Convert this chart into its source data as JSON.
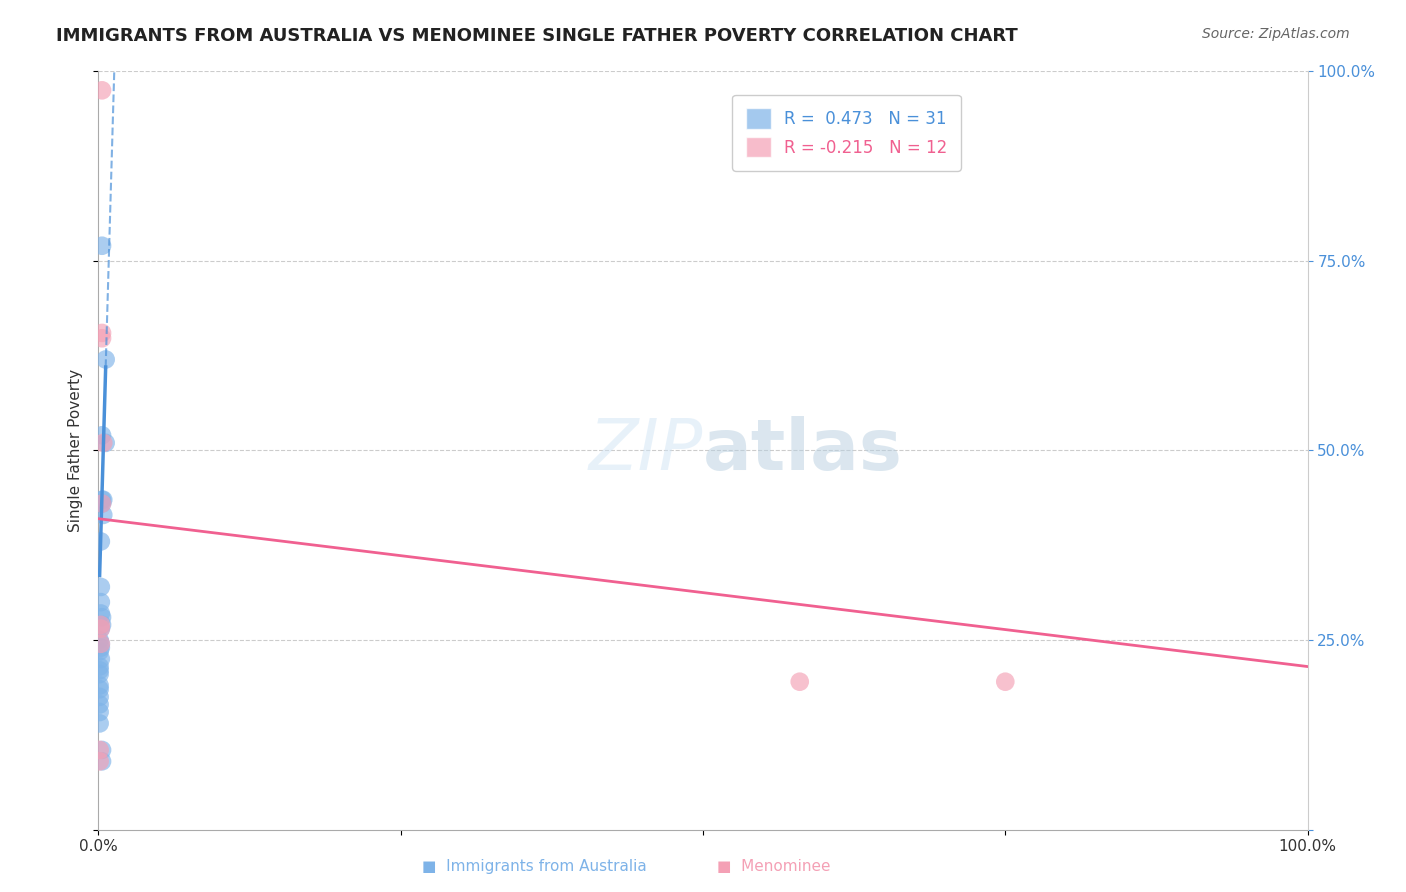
{
  "title": "IMMIGRANTS FROM AUSTRALIA VS MENOMINEE SINGLE FATHER POVERTY CORRELATION CHART",
  "source": "Source: ZipAtlas.com",
  "ylabel": "Single Father Poverty",
  "xlim": [
    0,
    1.0
  ],
  "ylim": [
    0,
    1.0
  ],
  "legend1_r": "R =  0.473",
  "legend1_n": "N = 31",
  "legend2_r": "R = -0.215",
  "legend2_n": "N = 12",
  "blue_color": "#7EB3E8",
  "pink_color": "#F4A0B5",
  "blue_line_color": "#4A90D9",
  "pink_line_color": "#F06090",
  "blue_scatter": [
    [
      0.003,
      0.77
    ],
    [
      0.006,
      0.62
    ],
    [
      0.003,
      0.52
    ],
    [
      0.006,
      0.51
    ],
    [
      0.003,
      0.435
    ],
    [
      0.003,
      0.43
    ],
    [
      0.004,
      0.435
    ],
    [
      0.004,
      0.415
    ],
    [
      0.002,
      0.38
    ],
    [
      0.002,
      0.32
    ],
    [
      0.002,
      0.3
    ],
    [
      0.002,
      0.285
    ],
    [
      0.003,
      0.28
    ],
    [
      0.003,
      0.27
    ],
    [
      0.002,
      0.265
    ],
    [
      0.001,
      0.25
    ],
    [
      0.002,
      0.245
    ],
    [
      0.002,
      0.24
    ],
    [
      0.001,
      0.235
    ],
    [
      0.002,
      0.225
    ],
    [
      0.001,
      0.215
    ],
    [
      0.001,
      0.21
    ],
    [
      0.001,
      0.205
    ],
    [
      0.001,
      0.19
    ],
    [
      0.001,
      0.185
    ],
    [
      0.001,
      0.175
    ],
    [
      0.001,
      0.165
    ],
    [
      0.001,
      0.155
    ],
    [
      0.001,
      0.14
    ],
    [
      0.003,
      0.105
    ],
    [
      0.003,
      0.09
    ]
  ],
  "pink_scatter": [
    [
      0.003,
      0.975
    ],
    [
      0.003,
      0.655
    ],
    [
      0.003,
      0.648
    ],
    [
      0.004,
      0.51
    ],
    [
      0.003,
      0.43
    ],
    [
      0.002,
      0.27
    ],
    [
      0.002,
      0.265
    ],
    [
      0.002,
      0.245
    ],
    [
      0.001,
      0.105
    ],
    [
      0.001,
      0.09
    ],
    [
      0.58,
      0.195
    ],
    [
      0.75,
      0.195
    ]
  ],
  "blue_trend_y_start": 0.28,
  "blue_trend_slope": 55.0,
  "pink_trend_y_start": 0.41,
  "pink_trend_slope": -0.195
}
